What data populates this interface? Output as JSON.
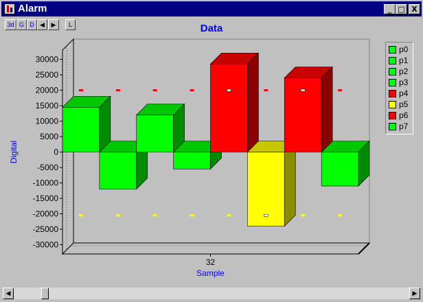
{
  "window": {
    "title": "Alarm"
  },
  "titlebar_buttons": {
    "minimize": "_",
    "maximize": "□",
    "close": "X"
  },
  "toolbar": {
    "btn_3d": "3d",
    "btn_g": "G",
    "btn_d": "D",
    "btn_prev": "◀",
    "btn_next": "▶",
    "btn_l": "L"
  },
  "scrollbar": {
    "left_arrow": "◀",
    "right_arrow": "▶"
  },
  "colors": {
    "green": "#00ff00",
    "red": "#ff0000",
    "yellow": "#ffff00",
    "label_blue": "#0000ff"
  },
  "chart_data": {
    "type": "bar",
    "title": "Data",
    "xlabel": "Sample",
    "ylabel": "Digital",
    "x_tick": "32",
    "ylim": [
      -33000,
      33000
    ],
    "y_ticks": [
      30000,
      25000,
      20000,
      15000,
      10000,
      5000,
      0,
      -5000,
      -10000,
      -15000,
      -20000,
      -25000,
      -30000
    ],
    "series": [
      {
        "name": "p0",
        "value": 14500,
        "color": "#00ff00"
      },
      {
        "name": "p1",
        "value": -12000,
        "color": "#00ff00"
      },
      {
        "name": "p2",
        "value": 12000,
        "color": "#00ff00"
      },
      {
        "name": "p3",
        "value": -5500,
        "color": "#00ff00"
      },
      {
        "name": "p4",
        "value": 28500,
        "color": "#ff0000"
      },
      {
        "name": "p5",
        "value": -24000,
        "color": "#ffff00"
      },
      {
        "name": "p6",
        "value": 24000,
        "color": "#ff0000"
      },
      {
        "name": "p7",
        "value": -11000,
        "color": "#00ff00"
      }
    ],
    "high_limit": 20000,
    "low_limit": -20500,
    "legend_placement": "right"
  }
}
